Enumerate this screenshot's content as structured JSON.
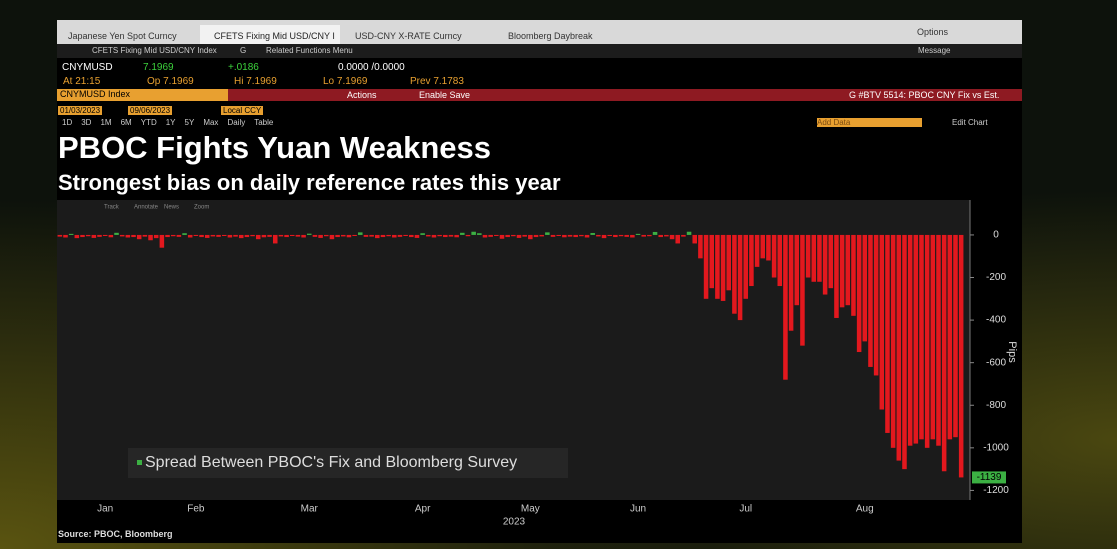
{
  "ui": {
    "tabs": [
      "Japanese Yen Spot Curncy",
      "CFETS Fixing Mid USD/CNY I",
      "USD-CNY X-RATE Curncy",
      "Bloomberg Daybreak"
    ],
    "options": "Options",
    "message": "Message",
    "nav": [
      "CFETS Fixing Mid USD/CNY Index",
      "G",
      "Related Functions Menu"
    ],
    "quote": {
      "ticker": "CNYMUSD",
      "price": "7.1969",
      "change": "+.0186",
      "bidask": "0.0000 /0.0000",
      "at": "At 21:15",
      "op": "Op 7.1969",
      "hi": "Hi 7.1969",
      "lo": "Lo 7.1969",
      "prev": "Prev 7.1783"
    },
    "security": "CNYMUSD Index",
    "actions": "Actions",
    "enable_save": "Enable Save",
    "chart_name": "G #BTV 5514: PBOC CNY Fix vs Est.",
    "start_date": "01/03/2023",
    "end_date": "09/06/2023",
    "currency": "Local CCY",
    "periods": [
      "1D",
      "3D",
      "1M",
      "6M",
      "YTD",
      "1Y",
      "5Y",
      "Max",
      "Daily",
      "Table"
    ],
    "add_data": "Add Data",
    "edit_chart": "Edit Chart",
    "chart_tools": [
      "Track",
      "Annotate",
      "News",
      "Zoom"
    ],
    "source": "Source: PBOC, Bloomberg"
  },
  "chart_data": {
    "type": "bar",
    "title": "PBOC Fights Yuan Weakness",
    "subtitle": "Strongest bias on daily reference rates this year",
    "ylabel": "Pips",
    "xlabel": "2023",
    "categories": [
      null,
      null,
      null,
      null,
      null,
      null,
      null,
      null,
      "Jan",
      null,
      null,
      null,
      null,
      null,
      null,
      null,
      null,
      null,
      null,
      null,
      null,
      null,
      null,
      null,
      "Feb",
      null,
      null,
      null,
      null,
      null,
      null,
      null,
      null,
      null,
      null,
      null,
      null,
      null,
      null,
      null,
      null,
      null,
      null,
      null,
      "Mar",
      null,
      null,
      null,
      null,
      null,
      null,
      null,
      null,
      null,
      null,
      null,
      null,
      null,
      null,
      null,
      null,
      null,
      null,
      null,
      "Apr",
      null,
      null,
      null,
      null,
      null,
      null,
      null,
      null,
      null,
      null,
      null,
      null,
      null,
      null,
      null,
      null,
      null,
      null,
      "May",
      null,
      null,
      null,
      null,
      null,
      null,
      null,
      null,
      null,
      null,
      null,
      null,
      null,
      null,
      null,
      null,
      null,
      null,
      "Jun",
      null,
      null,
      null,
      null,
      null,
      null,
      null,
      null,
      null,
      null,
      null,
      null,
      null,
      null,
      null,
      null,
      null,
      null,
      "Jul",
      null,
      null,
      null,
      null,
      null,
      null,
      null,
      null,
      null,
      null,
      null,
      null,
      null,
      null,
      null,
      null,
      null,
      null,
      null,
      null,
      "Aug",
      null,
      null,
      null,
      null,
      null,
      null,
      null,
      null,
      null,
      null,
      null,
      null,
      null,
      null,
      null,
      null,
      null
    ],
    "series": [
      {
        "name": "Spread Between PBOC's Fix and Bloomberg Survey",
        "color": "#e3181e",
        "positive_color": "#3cb043",
        "values": [
          -8,
          -12,
          5,
          -15,
          -10,
          -6,
          -14,
          -9,
          -5,
          -11,
          10,
          -7,
          -12,
          -10,
          -20,
          -8,
          -25,
          -15,
          -60,
          -10,
          -6,
          -9,
          8,
          -12,
          -5,
          -10,
          -14,
          -7,
          -9,
          -5,
          -12,
          -8,
          -15,
          -10,
          -6,
          -20,
          -11,
          -9,
          -40,
          -7,
          -10,
          -5,
          -8,
          -12,
          6,
          -9,
          -14,
          -6,
          -20,
          -10,
          -7,
          -11,
          -5,
          12,
          -9,
          -8,
          -15,
          -10,
          -6,
          -12,
          -9,
          -5,
          -10,
          -14,
          8,
          -7,
          -12,
          -6,
          -10,
          -8,
          -11,
          10,
          -6,
          15,
          8,
          -12,
          -9,
          -5,
          -18,
          -10,
          -6,
          -14,
          -8,
          -20,
          -10,
          -7,
          12,
          -9,
          -5,
          -11,
          -8,
          -10,
          -6,
          -12,
          9,
          -7,
          -15,
          -5,
          -10,
          -6,
          -9,
          -12,
          5,
          -8,
          -6,
          14,
          -10,
          -7,
          -20,
          -40,
          -8,
          15,
          -40,
          -110,
          -300,
          -250,
          -300,
          -310,
          -260,
          -370,
          -400,
          -300,
          -240,
          -150,
          -110,
          -120,
          -200,
          -240,
          -680,
          -450,
          -330,
          -520,
          -200,
          -220,
          -220,
          -280,
          -250,
          -390,
          -340,
          -330,
          -380,
          -550,
          -500,
          -620,
          -660,
          -820,
          -930,
          -1000,
          -1060,
          -1100,
          -990,
          -980,
          -960,
          -1000,
          -960,
          -990,
          -1110,
          -960,
          -950,
          -1139
        ]
      }
    ],
    "ylim": [
      -1245,
      150
    ],
    "yticks": [
      0,
      -200,
      -400,
      -600,
      -800,
      -1000,
      -1200
    ],
    "grid": false,
    "legend": "lower-left"
  }
}
